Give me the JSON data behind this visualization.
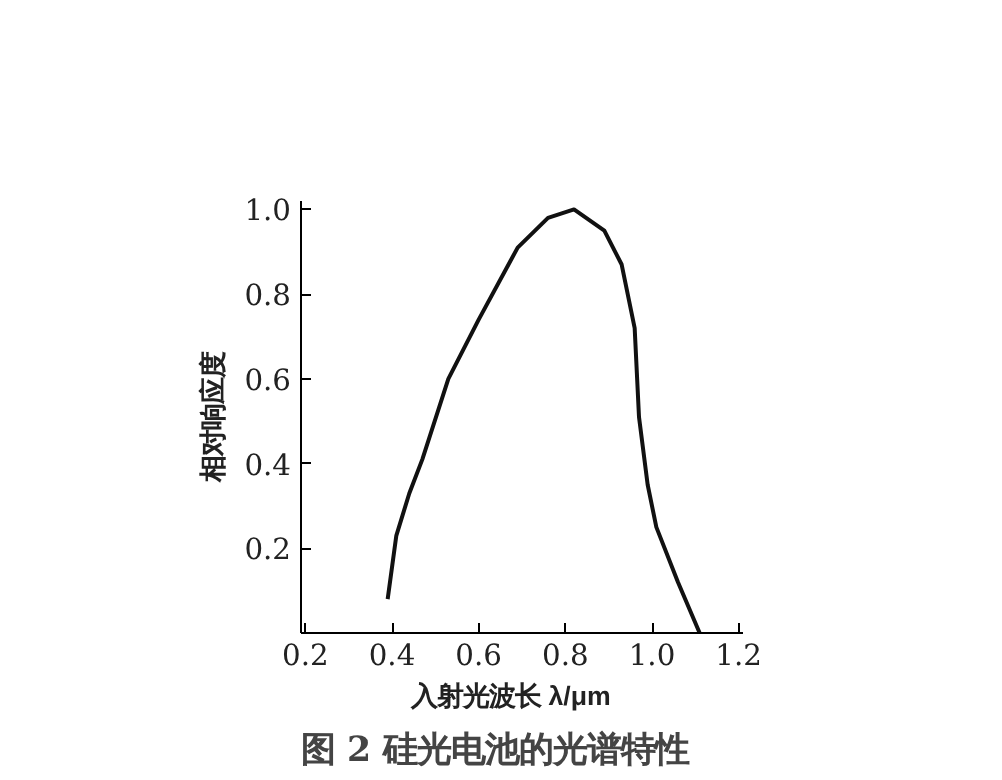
{
  "chart_data": {
    "type": "line",
    "title": "图 2   硅光电池的光谱特性",
    "xlabel": "入射光波长    λ/μm",
    "ylabel": "相对响应度",
    "x": [
      0.39,
      0.41,
      0.44,
      0.47,
      0.53,
      0.6,
      0.69,
      0.76,
      0.82,
      0.89,
      0.93,
      0.96,
      0.97,
      0.99,
      1.01,
      1.06,
      1.11
    ],
    "series": [
      {
        "color": "#111111",
        "values": [
          0.08,
          0.23,
          0.33,
          0.41,
          0.6,
          0.74,
          0.91,
          0.98,
          1.0,
          0.95,
          0.87,
          0.72,
          0.51,
          0.35,
          0.25,
          0.12,
          0.0
        ]
      }
    ],
    "xlim": [
      0.19,
      1.21
    ],
    "ylim": [
      0,
      1.02
    ],
    "xticks": [
      0.2,
      0.4,
      0.6,
      0.8,
      {
        "value": 1.0,
        "label": "1.0"
      },
      1.2
    ],
    "yticks": [
      {
        "value": 0,
        "label": null
      },
      0.2,
      0.4,
      0.6,
      0.8,
      {
        "value": 1.0,
        "label": "1.0"
      }
    ],
    "grid": false,
    "marker": "none",
    "line_style": "solid"
  }
}
